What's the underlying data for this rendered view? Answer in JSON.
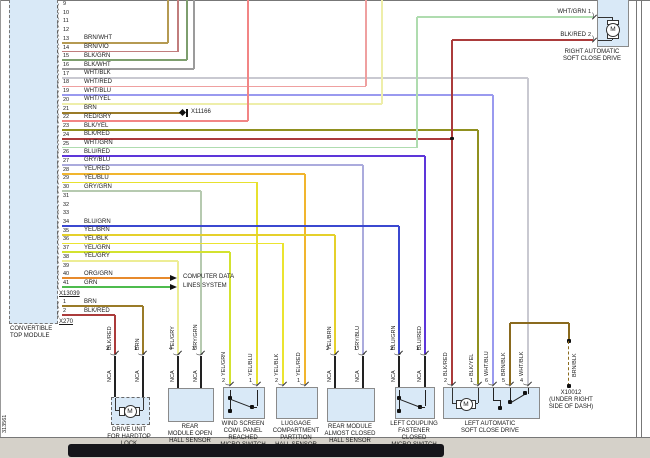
{
  "doc_number": "313561",
  "module": {
    "name_lines": [
      "CONVERTIBLE",
      "TOP MODULE"
    ],
    "connector_x13039": "X13039",
    "connector_x270": "X270",
    "pins": [
      {
        "num": "9",
        "label": ""
      },
      {
        "num": "10",
        "label": ""
      },
      {
        "num": "11",
        "label": ""
      },
      {
        "num": "12",
        "label": ""
      },
      {
        "num": "13",
        "label": "BRN/WHT"
      },
      {
        "num": "14",
        "label": "BRN/VIO"
      },
      {
        "num": "15",
        "label": "BLK/GRN"
      },
      {
        "num": "16",
        "label": "BLK/WHT"
      },
      {
        "num": "17",
        "label": "WHT/BLK"
      },
      {
        "num": "18",
        "label": "WHT/RED"
      },
      {
        "num": "19",
        "label": "WHT/BLU"
      },
      {
        "num": "20",
        "label": "WHT/YEL"
      },
      {
        "num": "21",
        "label": "BRN"
      },
      {
        "num": "22",
        "label": "RED/GRY"
      },
      {
        "num": "23",
        "label": "BLK/YEL"
      },
      {
        "num": "24",
        "label": "BLK/RED"
      },
      {
        "num": "25",
        "label": "WHT/GRN"
      },
      {
        "num": "26",
        "label": "BLU/RED"
      },
      {
        "num": "27",
        "label": "GRY/BLU"
      },
      {
        "num": "28",
        "label": "YEL/RED"
      },
      {
        "num": "29",
        "label": "YEL/BLU"
      },
      {
        "num": "30",
        "label": "GRY/GRN"
      },
      {
        "num": "31",
        "label": ""
      },
      {
        "num": "32",
        "label": ""
      },
      {
        "num": "33",
        "label": ""
      },
      {
        "num": "34",
        "label": "BLU/GRN"
      },
      {
        "num": "35",
        "label": "YEL/BRN"
      },
      {
        "num": "36",
        "label": "YEL/BLK"
      },
      {
        "num": "37",
        "label": "YEL/GRN"
      },
      {
        "num": "38",
        "label": "YEL/GRY"
      },
      {
        "num": "39",
        "label": ""
      },
      {
        "num": "40",
        "label": "ORG/GRN"
      },
      {
        "num": "41",
        "label": "GRN"
      }
    ],
    "x270_pins": [
      {
        "num": "1",
        "label": "BRN"
      },
      {
        "num": "2",
        "label": "BLK/RED"
      }
    ]
  },
  "notes": {
    "x11166": "X11166",
    "computer_data_lines": [
      "COMPUTER DATA",
      "LINES SYSTEM"
    ],
    "x10012_lines": [
      "X10012",
      "(UNDER RIGHT",
      "SIDE OF DASH)"
    ],
    "nca": "NCA"
  },
  "symbols": {
    "motor": "M"
  },
  "components": [
    {
      "id": "drive-unit",
      "name_lines": [
        "DRIVE UNIT",
        "FOR HARDTOP",
        "LOCK"
      ],
      "pins": [
        {
          "num": "2",
          "wire": "BLK/RED"
        },
        {
          "num": "1",
          "wire": "BRN"
        }
      ]
    },
    {
      "id": "rear-open",
      "name_lines": [
        "REAR",
        "MODULE OPEN",
        "HALL SENSOR"
      ],
      "pins": [
        {
          "num": "4",
          "wire": "YEL/GRY"
        },
        {
          "num": "3",
          "wire": "GRY/GRN"
        }
      ]
    },
    {
      "id": "windscreen",
      "name_lines": [
        "WIND SCREEN",
        "COWL PANEL",
        "REACHED",
        "MICRO SWITCH"
      ],
      "pins": [
        {
          "num": "2",
          "wire": "YEL/GRN"
        },
        {
          "num": "1",
          "wire": "YEL/BLU"
        }
      ]
    },
    {
      "id": "luggage",
      "name_lines": [
        "LUGGAGE",
        "COMPARTMENT",
        "PARTITION",
        "HALL SENSOR"
      ],
      "pins": [
        {
          "num": "2",
          "wire": "YEL/BLK"
        },
        {
          "num": "1",
          "wire": "YEL/RED"
        }
      ]
    },
    {
      "id": "rear-almost",
      "name_lines": [
        "REAR MODULE",
        "ALMOST CLOSED",
        "HALL SENSOR"
      ],
      "pins": [
        {
          "num": "2",
          "wire": "YEL/BRN"
        },
        {
          "num": "1",
          "wire": "GRY/BLU"
        }
      ]
    },
    {
      "id": "coupling",
      "name_lines": [
        "LEFT COUPLING",
        "FASTENER",
        "CLOSED",
        "MICRO SWITCH"
      ],
      "pins": [
        {
          "num": "2",
          "wire": "BLU/GRN"
        },
        {
          "num": "1",
          "wire": "BLU/RED"
        }
      ]
    },
    {
      "id": "left-drive",
      "name_lines": [
        "LEFT AUTOMATIC",
        "SOFT CLOSE DRIVE"
      ],
      "pins": [
        {
          "num": "2",
          "wire": "BLK/RED"
        },
        {
          "num": "1",
          "wire": "BLK/YEL"
        },
        {
          "num": "6",
          "wire": "WHT/BLU"
        },
        {
          "num": "5",
          "wire": "BRN/BLK"
        },
        {
          "num": "4",
          "wire": "WHT/BLK"
        }
      ]
    },
    {
      "id": "right-drive",
      "name_lines": [
        "RIGHT AUTOMATIC",
        "SOFT CLOSE DRIVE"
      ],
      "pins": [
        {
          "num": "1",
          "wire": "WHT/GRN"
        },
        {
          "num": "2",
          "wire": "BLK/RED"
        }
      ]
    }
  ],
  "wire_colors": {
    "BRN/WHT": "#b59a52",
    "BRN/VIO": "#c17d7d",
    "BLK/GRN": "#7d9e6e",
    "BLK/WHT": "#9b9b9b",
    "WHT/BLK": "#c9c9d1",
    "WHT/RED": "#efa0a0",
    "WHT/BLU": "#9a9aef",
    "WHT/YEL": "#eeeeaa",
    "BRN": "#9a7b28",
    "RED/GRY": "#f28585",
    "BLK/YEL": "#90901f",
    "BLK/RED": "#ab3b3b",
    "WHT/GRN": "#afdcaf",
    "BLU/RED": "#5d36d9",
    "GRY/BLU": "#ababdd",
    "YEL/RED": "#f1b52e",
    "YEL/BLU": "#e7e12f",
    "GRY/GRN": "#b6cab0",
    "BLU/GRN": "#3b48d0",
    "YEL/BRN": "#e5d02b",
    "YEL/BLK": "#ebe430",
    "YEL/GRN": "#d3e22f",
    "YEL/GRY": "#eded95",
    "ORG/GRN": "#e78a2c",
    "GRN": "#4dbc4d",
    "BRN/BLK": "#8a6a1e"
  }
}
